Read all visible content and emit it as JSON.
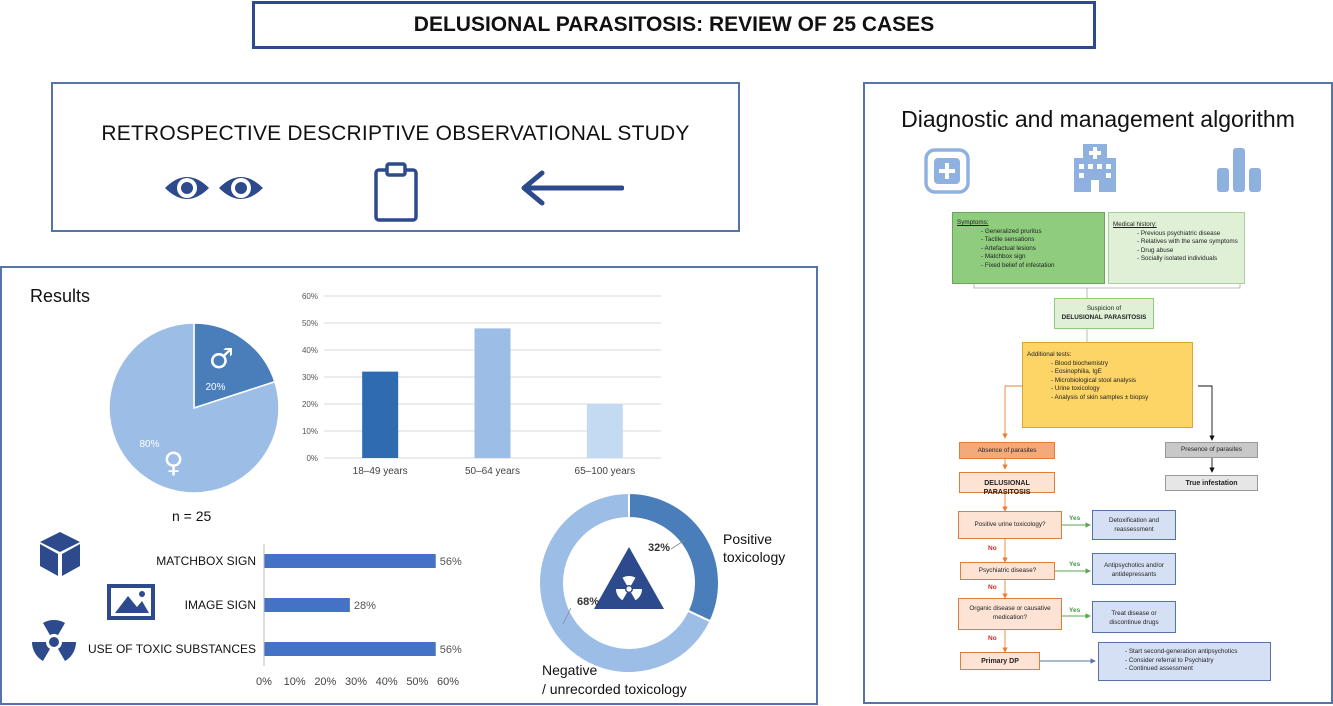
{
  "title": "DELUSIONAL PARASITOSIS: REVIEW OF 25 CASES",
  "study": {
    "title": "RETROSPECTIVE DESCRIPTIVE OBSERVATIONAL STUDY",
    "icons": [
      "eyes-icon",
      "clipboard-icon",
      "arrow-left-icon"
    ]
  },
  "results": {
    "heading": "Results",
    "n_label": "n = 25"
  },
  "colors": {
    "border": "#5574aa",
    "dark_blue": "#2e6bb0",
    "mid_blue": "#9bbde6",
    "light_blue": "#c3daf2",
    "bar_blue": "#4472c4",
    "icon_navy": "#2c4a8c",
    "green_dark": "#8fcc7e",
    "green_light": "#dff0d6",
    "yellow": "#fcd566",
    "orange": "#f4a97a",
    "orange_light": "#fde3d3",
    "gray": "#c8c8c8",
    "light_purple": "#d6e0f4"
  },
  "chart_data": [
    {
      "type": "pie",
      "labels": [
        "20%",
        "80%"
      ],
      "values": [
        20,
        80
      ],
      "symbols": [
        "♂",
        "♀"
      ],
      "colors": [
        "#4a7ebb",
        "#9bbde6"
      ]
    },
    {
      "type": "bar",
      "categories": [
        "18–49 years",
        "50–64 years",
        "65–100 years"
      ],
      "values": [
        32,
        48,
        20
      ],
      "ylim": [
        0,
        60
      ],
      "yticks": [
        "0%",
        "10%",
        "20%",
        "30%",
        "40%",
        "50%",
        "60%"
      ],
      "colors": [
        "#2e6bb0",
        "#9bbde6",
        "#c3daf2"
      ],
      "grid": true
    },
    {
      "type": "bar",
      "orientation": "horizontal",
      "categories": [
        "MATCHBOX SIGN",
        "IMAGE SIGN",
        "USE OF TOXIC SUBSTANCES"
      ],
      "values": [
        56,
        28,
        56
      ],
      "value_labels": [
        "56%",
        "28%",
        "56%"
      ],
      "xlim": [
        0,
        60
      ],
      "xticks": [
        "0%",
        "10%",
        "20%",
        "30%",
        "40%",
        "50%",
        "60%"
      ],
      "color": "#4472c4"
    },
    {
      "type": "pie",
      "donut": true,
      "labels": [
        "32%",
        "68%"
      ],
      "values": [
        32,
        68
      ],
      "series_names": [
        "Positive toxicology",
        "Negative / unrecorded toxicology"
      ],
      "series_lines": [
        [
          "Positive",
          "toxicology"
        ],
        [
          "Negative",
          "/ unrecorded toxicology"
        ]
      ],
      "colors": [
        "#4a7ebb",
        "#9bbde6"
      ]
    }
  ],
  "algorithm": {
    "title": "Diagnostic and management algorithm",
    "symptoms_title": "Symptoms:",
    "symptoms": [
      "Generalized pruritus",
      "Tactile sensations",
      "Artefactual lesions",
      "Matchbox sign",
      "Fixed belief of infestation"
    ],
    "history_title": "Medical history:",
    "history": [
      "Previous psychiatric disease",
      "Relatives with the same symptoms",
      "Drug abuse",
      "Socially isolated individuals"
    ],
    "suspicion_line1": "Suspicion of",
    "suspicion_line2": "DELUSIONAL PARASITOSIS",
    "tests_title": "Additional tests:",
    "tests": [
      "Blood biochemistry",
      "Eosinophilia, IgE",
      "Microbiological stool analysis",
      "Urine toxicology",
      "Analysis of skin samples ± biopsy"
    ],
    "absence": "Absence of parasites",
    "presence": "Presence of parasites",
    "dp": "DELUSIONAL PARASITOSIS",
    "true_infestation": "True infestation",
    "q1": "Positive urine toxicology?",
    "a1": "Detoxification and reassessment",
    "q2": "Psychiatric disease?",
    "a2": "Antipsychotics and/or antidepressants",
    "q3": "Organic disease or causative medication?",
    "a3": "Treat disease or discontinue drugs",
    "primary": "Primary DP",
    "final": [
      "Start second-generation antipsychotics",
      "Consider referral to Psychiatry",
      "Continued assessment"
    ],
    "yes": "Yes",
    "no": "No"
  }
}
